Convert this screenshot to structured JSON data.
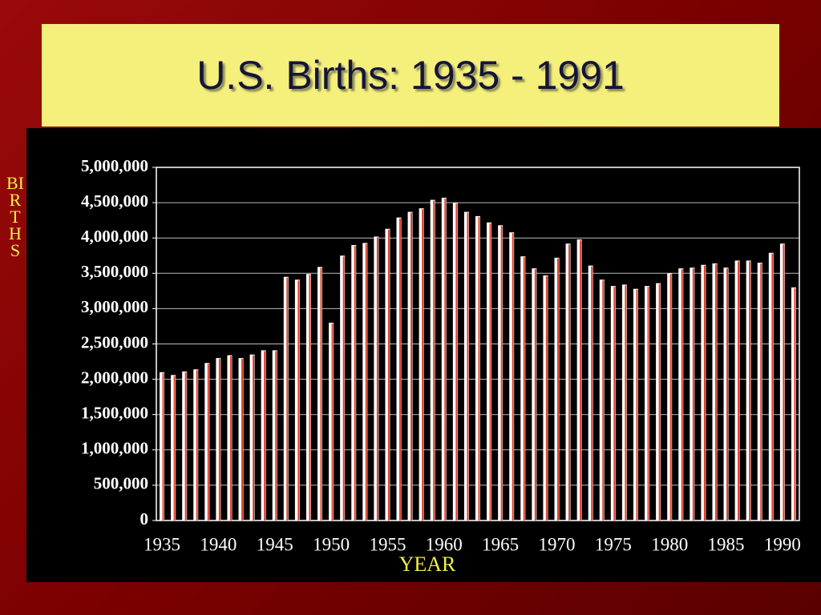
{
  "chart_data": {
    "type": "bar",
    "title": "U.S. Births: 1935 - 1991",
    "x_label": "YEAR",
    "y_label": "BIRTHS",
    "categories": [
      "1935",
      null,
      null,
      null,
      null,
      "1940",
      null,
      null,
      null,
      null,
      "1945",
      null,
      null,
      null,
      null,
      "1950",
      null,
      null,
      null,
      null,
      "1955",
      null,
      null,
      null,
      null,
      "1960",
      null,
      null,
      null,
      null,
      "1965",
      null,
      null,
      null,
      null,
      "1970",
      null,
      null,
      null,
      null,
      "1975",
      null,
      null,
      null,
      null,
      "1980",
      null,
      null,
      null,
      null,
      "1985",
      null,
      null,
      null,
      null,
      "1990",
      null
    ],
    "values": [
      2100000,
      2060000,
      2110000,
      2140000,
      2230000,
      2300000,
      2340000,
      2300000,
      2350000,
      2410000,
      2410000,
      3450000,
      3410000,
      3490000,
      3590000,
      2800000,
      3750000,
      3900000,
      3930000,
      4020000,
      4130000,
      4290000,
      4370000,
      4420000,
      4540000,
      4570000,
      4500000,
      4370000,
      4310000,
      4220000,
      4180000,
      4080000,
      3740000,
      3570000,
      3470000,
      3720000,
      3920000,
      3980000,
      3610000,
      3410000,
      3320000,
      3340000,
      3280000,
      3320000,
      3360000,
      3500000,
      3570000,
      3580000,
      3620000,
      3640000,
      3580000,
      3680000,
      3680000,
      3650000,
      3790000,
      3920000,
      3300000
    ],
    "color": "#e0402a",
    "ylim": [
      0,
      5000000
    ],
    "yticks": [
      0,
      {
        "value": 500000,
        "label": "500,000"
      },
      {
        "value": 1000000,
        "label": "1,000,000"
      },
      {
        "value": 1500000,
        "label": "1,500,000"
      },
      {
        "value": 2000000,
        "label": "2,000,000"
      },
      {
        "value": 2500000,
        "label": "2,500,000"
      },
      {
        "value": 3000000,
        "label": "3,000,000"
      },
      {
        "value": 3500000,
        "label": "3,500,000"
      },
      {
        "value": 4000000,
        "label": "4,000,000"
      },
      {
        "value": 4500000,
        "label": "4,500,000"
      },
      {
        "value": 5000000,
        "label": "5,000,000"
      }
    ],
    "grid": true
  }
}
